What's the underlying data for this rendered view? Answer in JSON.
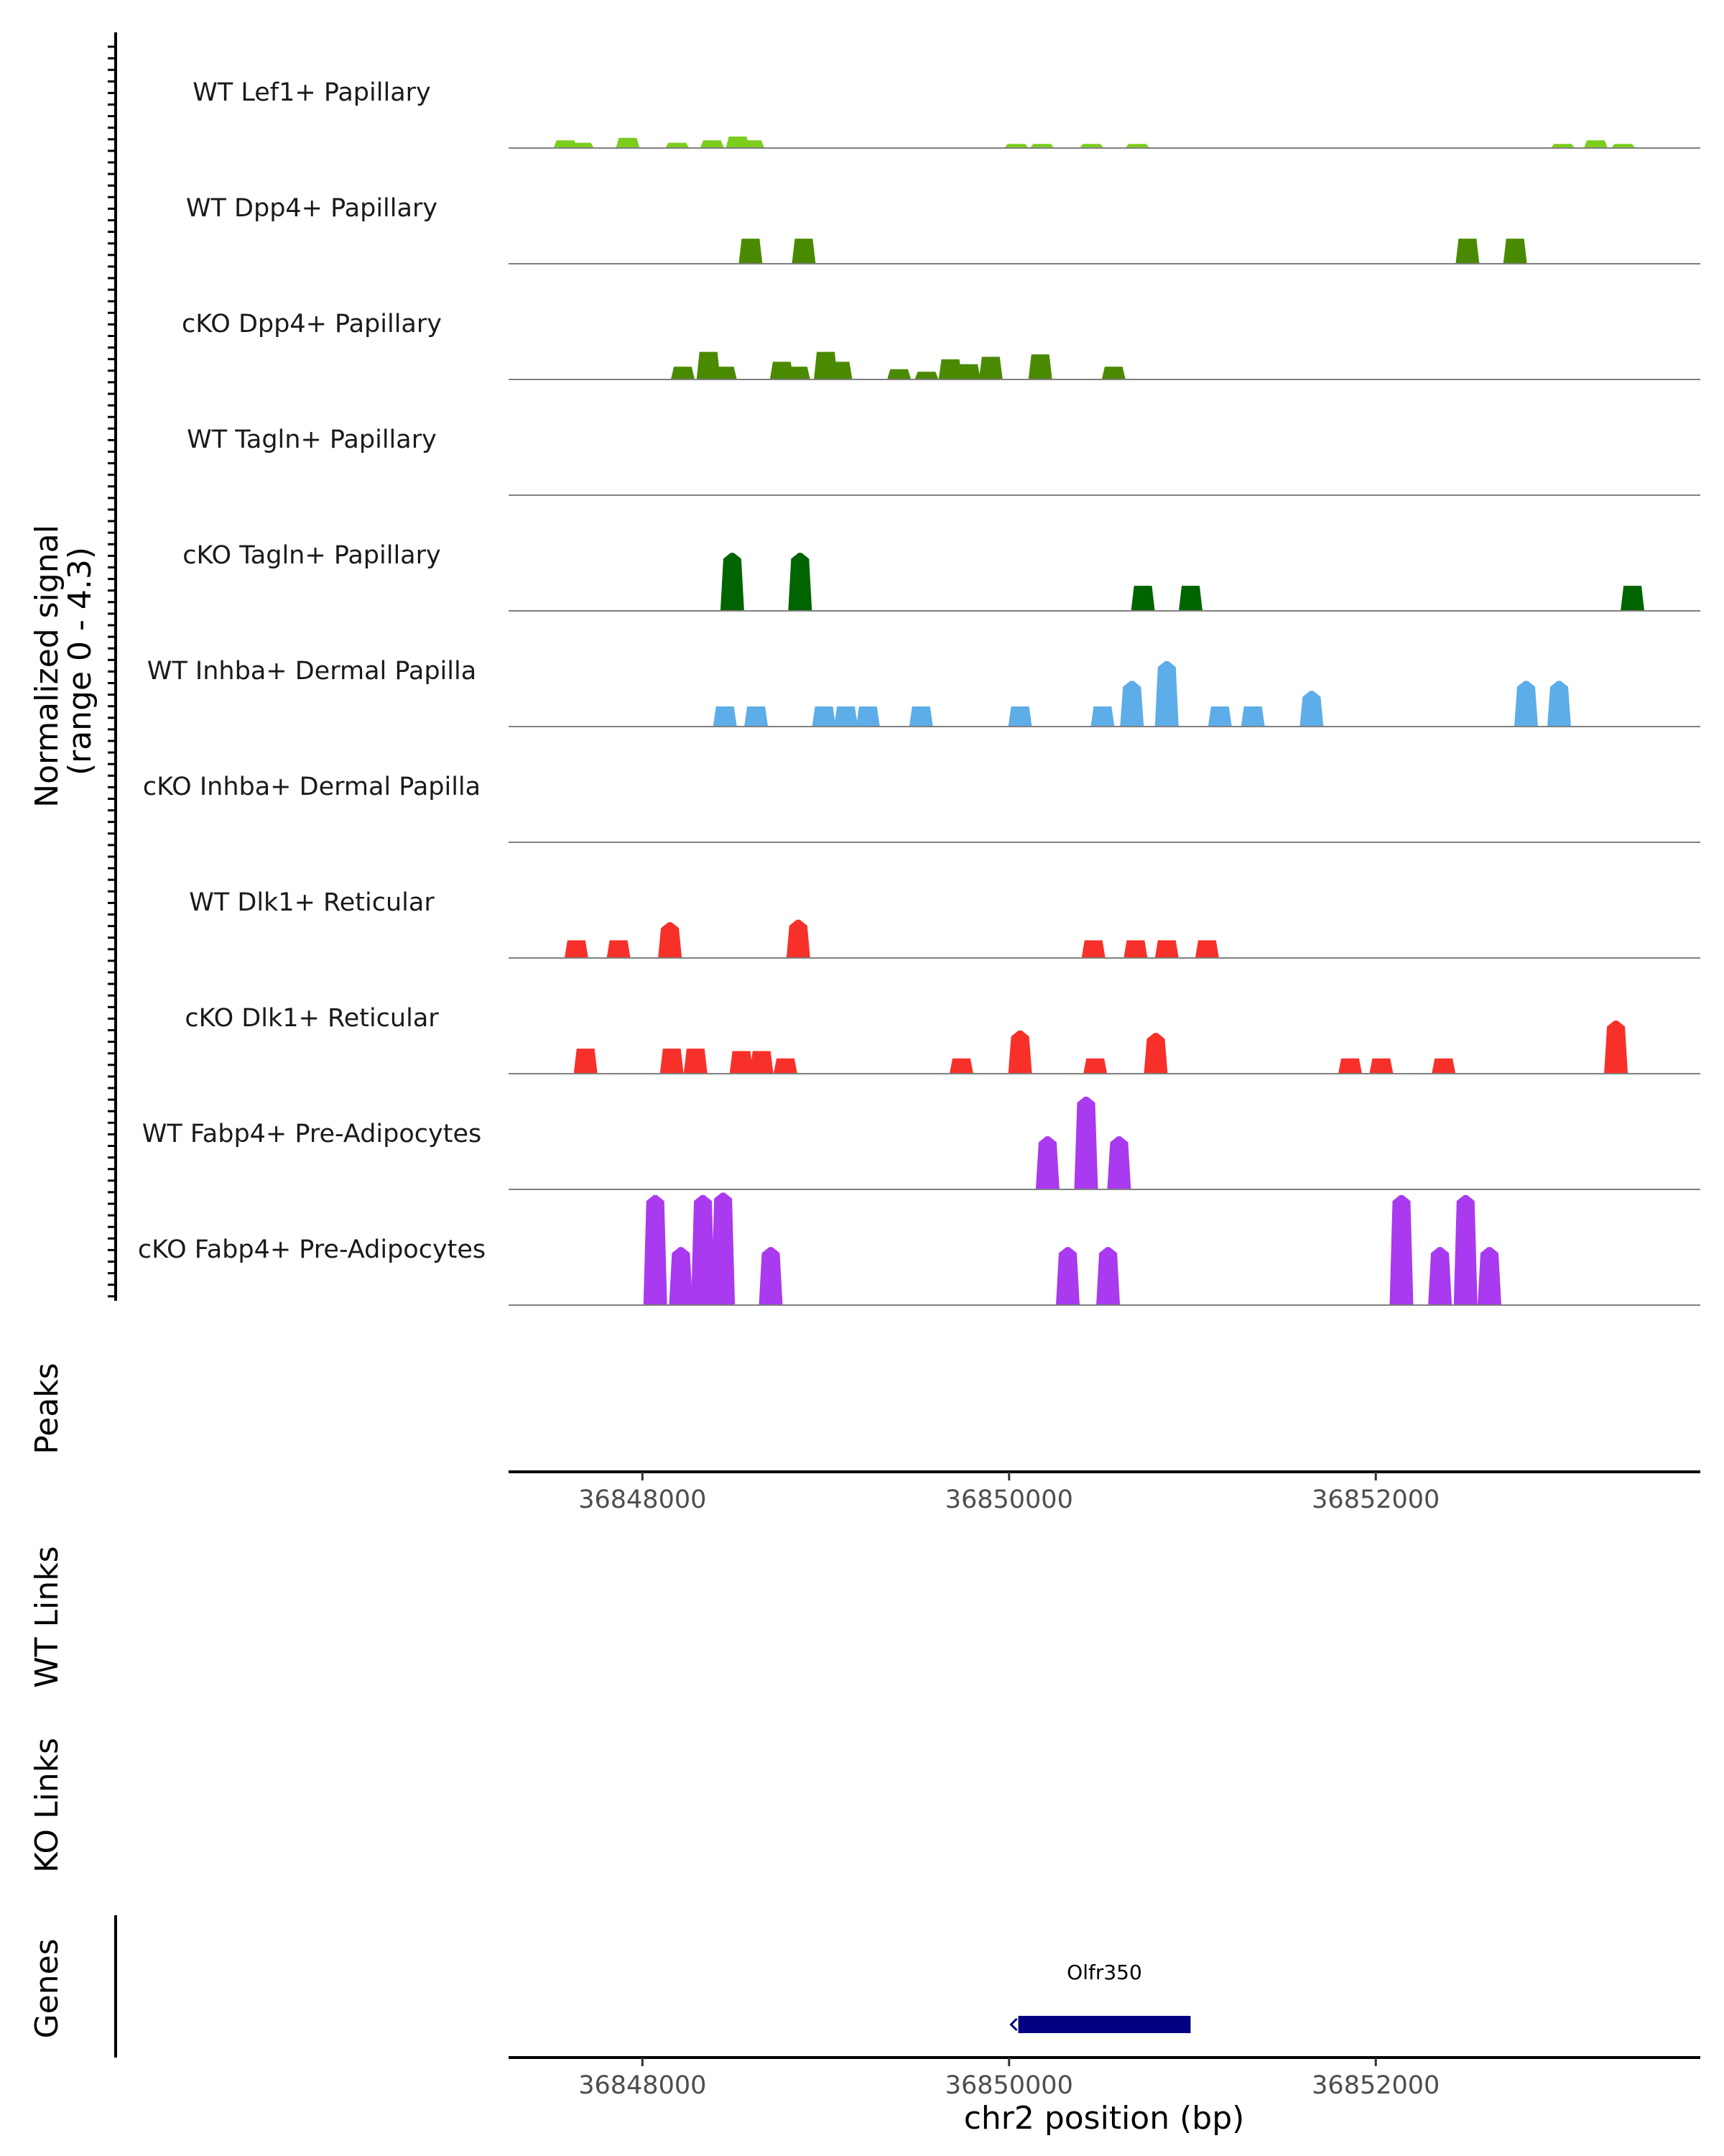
{
  "chart_data": {
    "type": "area",
    "title": "",
    "xlabel": "chr2 position (bp)",
    "ylabel_line1": "Normalized signal",
    "ylabel_line2": "(range 0 - 4.3)",
    "ylim": [
      0,
      4.3
    ],
    "xlim": [
      36847270,
      36853770
    ],
    "x_ticks": [
      36848000,
      36850000,
      36852000
    ],
    "x_tick_labels": [
      "36848000",
      "36850000",
      "36852000"
    ],
    "panel_labels": {
      "peaks": "Peaks",
      "wt_links": "WT Links",
      "ko_links": "KO Links",
      "genes": "Genes"
    },
    "series": [
      {
        "name": "WT Lef1+ Papillary",
        "color": "#7CCD1E",
        "peaks": [
          [
            36847580,
            0.3
          ],
          [
            36847670,
            0.2
          ],
          [
            36847920,
            0.4
          ],
          [
            36848190,
            0.2
          ],
          [
            36848380,
            0.3
          ],
          [
            36848520,
            0.45
          ],
          [
            36848600,
            0.3
          ],
          [
            36850040,
            0.15
          ],
          [
            36850180,
            0.15
          ],
          [
            36850450,
            0.15
          ],
          [
            36850700,
            0.15
          ],
          [
            36853020,
            0.15
          ],
          [
            36853200,
            0.3
          ],
          [
            36853350,
            0.15
          ]
        ]
      },
      {
        "name": "WT Dpp4+ Papillary",
        "color": "#4A8A00",
        "peaks": [
          [
            36848590,
            1.0
          ],
          [
            36848880,
            1.0
          ],
          [
            36852500,
            1.0
          ],
          [
            36852760,
            1.0
          ]
        ]
      },
      {
        "name": "cKO Dpp4+ Papillary",
        "color": "#4A8A00",
        "peaks": [
          [
            36848220,
            0.5
          ],
          [
            36848360,
            1.1
          ],
          [
            36848450,
            0.5
          ],
          [
            36848760,
            0.7
          ],
          [
            36848850,
            0.5
          ],
          [
            36849000,
            1.1
          ],
          [
            36849080,
            0.7
          ],
          [
            36849400,
            0.4
          ],
          [
            36849550,
            0.3
          ],
          [
            36849680,
            0.8
          ],
          [
            36849780,
            0.6
          ],
          [
            36849900,
            0.9
          ],
          [
            36850170,
            1.0
          ],
          [
            36850570,
            0.5
          ]
        ]
      },
      {
        "name": "WT Tagln+ Papillary",
        "color": "#1F7A1F",
        "peaks": []
      },
      {
        "name": "cKO Tagln+ Papillary",
        "color": "#006400",
        "peaks": [
          [
            36848490,
            2.1
          ],
          [
            36848860,
            2.1
          ],
          [
            36850730,
            1.0
          ],
          [
            36850990,
            1.0
          ],
          [
            36853400,
            1.0
          ]
        ]
      },
      {
        "name": "WT Inhba+ Dermal Papilla",
        "color": "#5DADE8",
        "peaks": [
          [
            36848450,
            0.8
          ],
          [
            36848620,
            0.8
          ],
          [
            36848990,
            0.8
          ],
          [
            36849110,
            0.8
          ],
          [
            36849230,
            0.8
          ],
          [
            36849520,
            0.8
          ],
          [
            36850060,
            0.8
          ],
          [
            36850510,
            0.8
          ],
          [
            36850670,
            1.6
          ],
          [
            36850860,
            2.4
          ],
          [
            36851150,
            0.8
          ],
          [
            36851330,
            0.8
          ],
          [
            36851650,
            1.2
          ],
          [
            36852820,
            1.6
          ],
          [
            36853000,
            1.6
          ]
        ]
      },
      {
        "name": "cKO Inhba+ Dermal Papilla",
        "color": "#5DADE8",
        "peaks": []
      },
      {
        "name": "WT Dlk1+ Reticular",
        "color": "#F8302A",
        "peaks": [
          [
            36847640,
            0.7
          ],
          [
            36847870,
            0.7
          ],
          [
            36848150,
            1.2
          ],
          [
            36848850,
            1.3
          ],
          [
            36850460,
            0.7
          ],
          [
            36850690,
            0.7
          ],
          [
            36850860,
            0.7
          ],
          [
            36851080,
            0.7
          ]
        ]
      },
      {
        "name": "cKO Dlk1+ Reticular",
        "color": "#F8302A",
        "peaks": [
          [
            36847690,
            1.0
          ],
          [
            36848160,
            1.0
          ],
          [
            36848290,
            1.0
          ],
          [
            36848540,
            0.9
          ],
          [
            36848650,
            0.9
          ],
          [
            36848780,
            0.6
          ],
          [
            36849740,
            0.6
          ],
          [
            36850060,
            1.5
          ],
          [
            36850470,
            0.6
          ],
          [
            36850800,
            1.4
          ],
          [
            36851860,
            0.6
          ],
          [
            36852030,
            0.6
          ],
          [
            36852370,
            0.6
          ],
          [
            36853310,
            1.9
          ]
        ]
      },
      {
        "name": "WT Fabp4+ Pre-Adipocytes",
        "color": "#A93AEF",
        "peaks": [
          [
            36850210,
            1.9
          ],
          [
            36850420,
            3.5
          ],
          [
            36850600,
            1.9
          ]
        ]
      },
      {
        "name": "cKO Fabp4+ Pre-Adipocytes",
        "color": "#A93AEF",
        "peaks": [
          [
            36848070,
            4.2
          ],
          [
            36848210,
            2.1
          ],
          [
            36848330,
            4.2
          ],
          [
            36848440,
            4.3
          ],
          [
            36848700,
            2.1
          ],
          [
            36850320,
            2.1
          ],
          [
            36850540,
            2.1
          ],
          [
            36852140,
            4.2
          ],
          [
            36852350,
            2.1
          ],
          [
            36852490,
            4.2
          ],
          [
            36852620,
            2.1
          ]
        ]
      }
    ],
    "gene": {
      "name": "Olfr350",
      "start": 36850050,
      "end": 36850990,
      "strand": "-",
      "color": "#000080"
    }
  }
}
